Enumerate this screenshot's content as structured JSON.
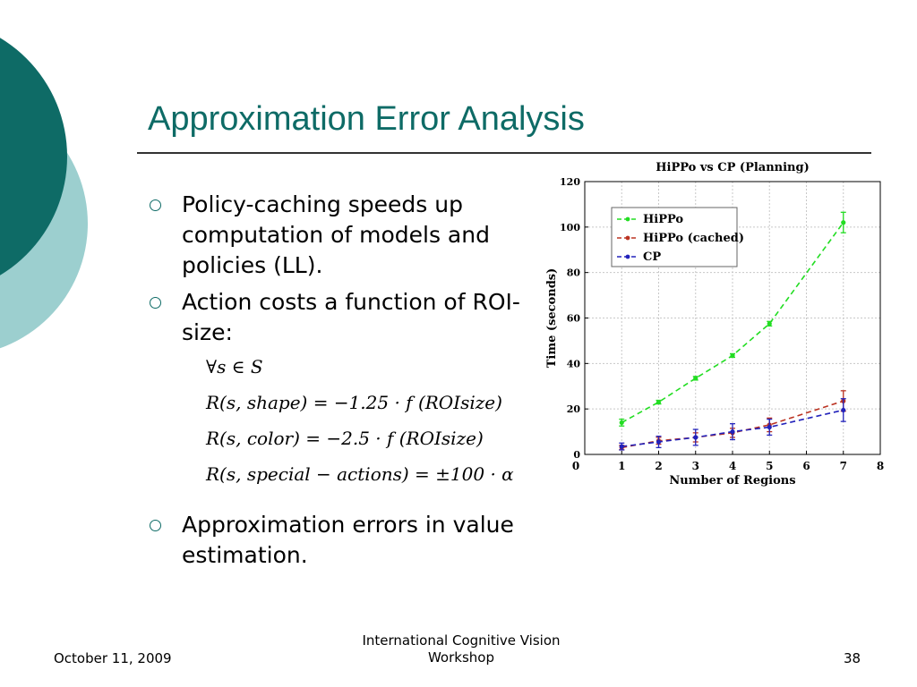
{
  "slide": {
    "title": "Approximation Error Analysis",
    "bullets": [
      "Policy-caching speeds up computation of models and policies (LL).",
      "Action costs a function of ROI-size:",
      "Approximation errors in value estimation."
    ],
    "formulas": [
      "∀s ∈ S",
      "R(s, shape) = −1.25 · f (ROIsize)",
      "R(s, color) = −2.5 · f (ROIsize)",
      "R(s, special − actions) = ±100 · α"
    ],
    "footer": {
      "date": "October 11, 2009",
      "venue_line1": "International Cognitive Vision",
      "venue_line2": "Workshop",
      "page": "38"
    },
    "colors": {
      "accent": "#0e6b66",
      "light_accent": "#9ccfcf"
    }
  },
  "chart_data": {
    "type": "line",
    "title": "HiPPo vs CP (Planning)",
    "xlabel": "Number of Regions",
    "ylabel": "Time (seconds)",
    "xlim": [
      0,
      8
    ],
    "ylim": [
      0,
      120
    ],
    "xticks": [
      1,
      2,
      3,
      4,
      5,
      6,
      7,
      8
    ],
    "yticks": [
      0,
      20,
      40,
      60,
      80,
      100,
      120
    ],
    "grid": true,
    "legend_position": "top-left",
    "series": [
      {
        "name": "HiPPo",
        "color": "#22dd22",
        "points": [
          [
            1,
            14
          ],
          [
            2,
            23
          ],
          [
            3,
            33.5
          ],
          [
            4,
            43.5
          ],
          [
            5,
            57.5
          ],
          [
            7,
            102
          ]
        ],
        "errors": [
          1.5,
          0.8,
          0.8,
          0.8,
          1,
          4.5
        ]
      },
      {
        "name": "HiPPo (cached)",
        "color": "#bb3322",
        "points": [
          [
            1,
            3
          ],
          [
            2,
            6
          ],
          [
            3,
            7.5
          ],
          [
            4,
            9.5
          ],
          [
            5,
            13
          ],
          [
            7,
            23.5
          ]
        ],
        "errors": [
          1,
          1.5,
          2,
          2,
          3,
          4.5
        ]
      },
      {
        "name": "CP",
        "color": "#2222bb",
        "points": [
          [
            1,
            3.5
          ],
          [
            2,
            5.5
          ],
          [
            3,
            7.5
          ],
          [
            4,
            10
          ],
          [
            5,
            12
          ],
          [
            7,
            19.5
          ]
        ],
        "errors": [
          1.5,
          2.5,
          3.5,
          3.5,
          3.5,
          5
        ]
      }
    ]
  }
}
